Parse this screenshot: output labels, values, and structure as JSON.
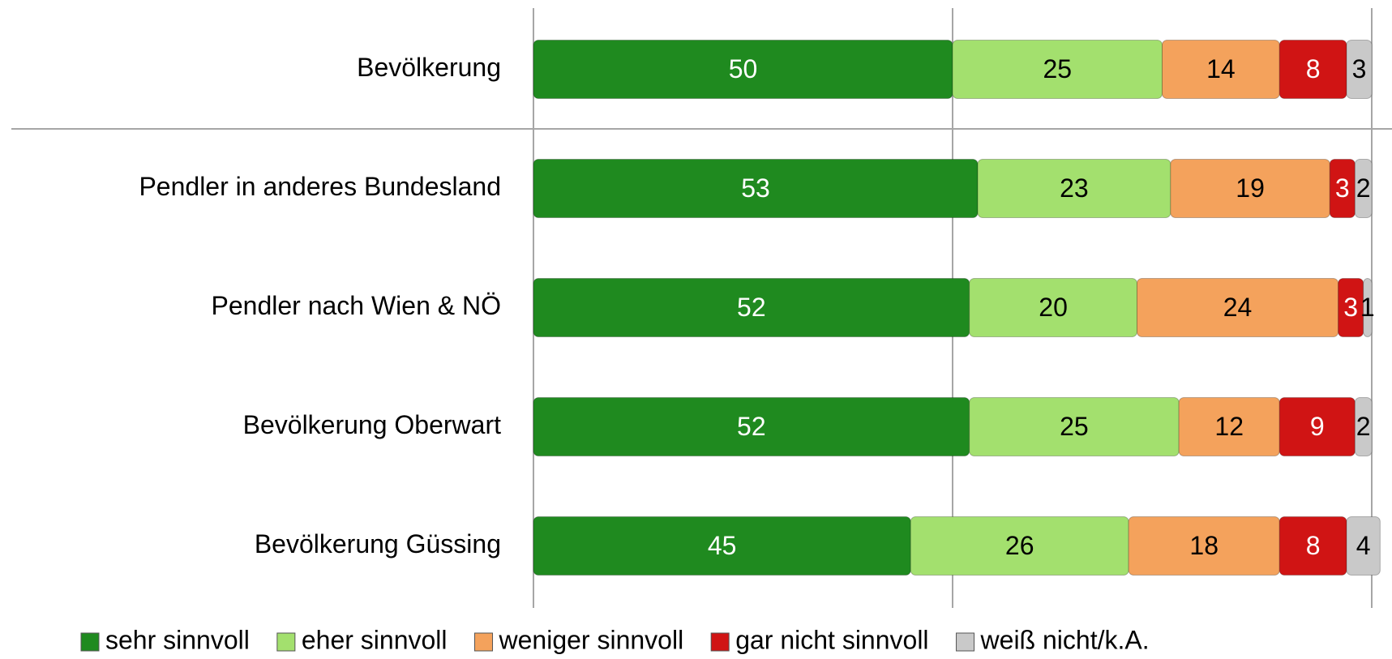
{
  "chart_data": {
    "type": "stacked-barh",
    "categories": [
      "Bevölkerung",
      "Pendler in anderes Bundesland",
      "Pendler nach Wien & NÖ",
      "Bevölkerung Oberwart",
      "Bevölkerung Güssing"
    ],
    "series": [
      {
        "name": "sehr sinnvoll",
        "color": "#1f8a1f",
        "label_color": "#ffffff",
        "values": [
          50,
          53,
          52,
          52,
          45
        ]
      },
      {
        "name": "eher sinnvoll",
        "color": "#a3e06e",
        "label_color": "#000000",
        "values": [
          25,
          23,
          20,
          25,
          26
        ]
      },
      {
        "name": "weniger sinnvoll",
        "color": "#f4a25c",
        "label_color": "#000000",
        "values": [
          14,
          19,
          24,
          12,
          18
        ]
      },
      {
        "name": "gar nicht sinnvoll",
        "color": "#d01414",
        "label_color": "#ffffff",
        "values": [
          8,
          3,
          3,
          9,
          8
        ]
      },
      {
        "name": "weiß nicht/k.A.",
        "color": "#c9c9c9",
        "label_color": "#000000",
        "values": [
          3,
          2,
          1,
          2,
          4
        ]
      }
    ],
    "xlim": [
      0,
      100
    ],
    "xticks": [
      0,
      50,
      100
    ],
    "grid": true,
    "legend": "bottom"
  }
}
